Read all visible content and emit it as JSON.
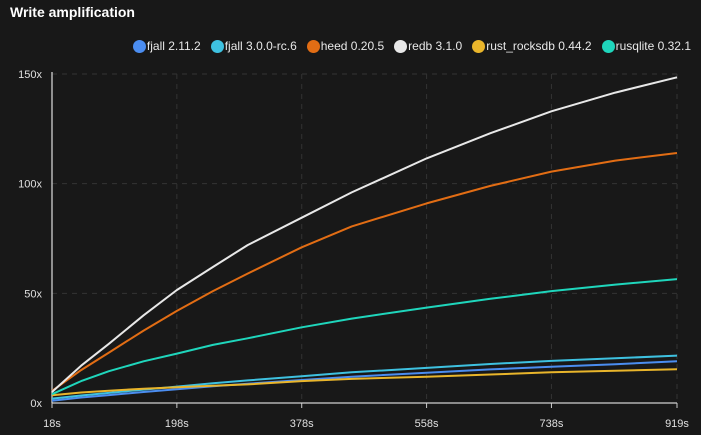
{
  "chart_data": {
    "type": "line",
    "title": "Write amplification",
    "xlabel": "",
    "ylabel": "",
    "x_ticks": [
      "18s",
      "198s",
      "378s",
      "558s",
      "738s",
      "919s"
    ],
    "y_ticks": [
      "0x",
      "50x",
      "100x",
      "150x"
    ],
    "xlim": [
      18,
      919
    ],
    "ylim": [
      0,
      150
    ],
    "grid": true,
    "legend_position": "top-right",
    "x": [
      18,
      60,
      100,
      150,
      198,
      250,
      300,
      378,
      450,
      558,
      650,
      738,
      830,
      919
    ],
    "series": [
      {
        "name": "fjall 2.11.2",
        "color": "#4b8df0",
        "values": [
          1,
          2.5,
          3.6,
          5,
          6.3,
          7.6,
          8.8,
          10.5,
          12,
          13.8,
          15.3,
          16.5,
          17.7,
          19
        ]
      },
      {
        "name": "fjall 3.0.0-rc.6",
        "color": "#3ec1e0",
        "values": [
          2,
          3.4,
          4.6,
          6.1,
          7.5,
          9,
          10.3,
          12.2,
          14,
          16,
          17.8,
          19.2,
          20.4,
          21.6
        ]
      },
      {
        "name": "heed 0.20.5",
        "color": "#e26d14",
        "values": [
          5.5,
          15,
          23,
          33,
          42,
          51,
          59,
          71,
          80.5,
          91,
          99,
          105.5,
          110.5,
          114
        ]
      },
      {
        "name": "redb 3.1.0",
        "color": "#e8e8e8",
        "values": [
          5,
          17,
          27,
          40,
          51.5,
          62,
          72,
          84.5,
          96,
          111.5,
          123,
          133,
          141.5,
          148.5
        ]
      },
      {
        "name": "rust_rocksdb 0.44.2",
        "color": "#e9b52b",
        "values": [
          3.5,
          4.8,
          5.6,
          6.5,
          7.2,
          7.9,
          8.5,
          10,
          11,
          12,
          13,
          14,
          14.7,
          15.4
        ]
      },
      {
        "name": "rusqlite 0.32.1",
        "color": "#1fd6bc",
        "values": [
          4,
          10,
          14.5,
          19,
          22.5,
          26.5,
          29.5,
          34.5,
          38.5,
          43.5,
          47.5,
          51,
          54,
          56.5
        ]
      }
    ]
  }
}
